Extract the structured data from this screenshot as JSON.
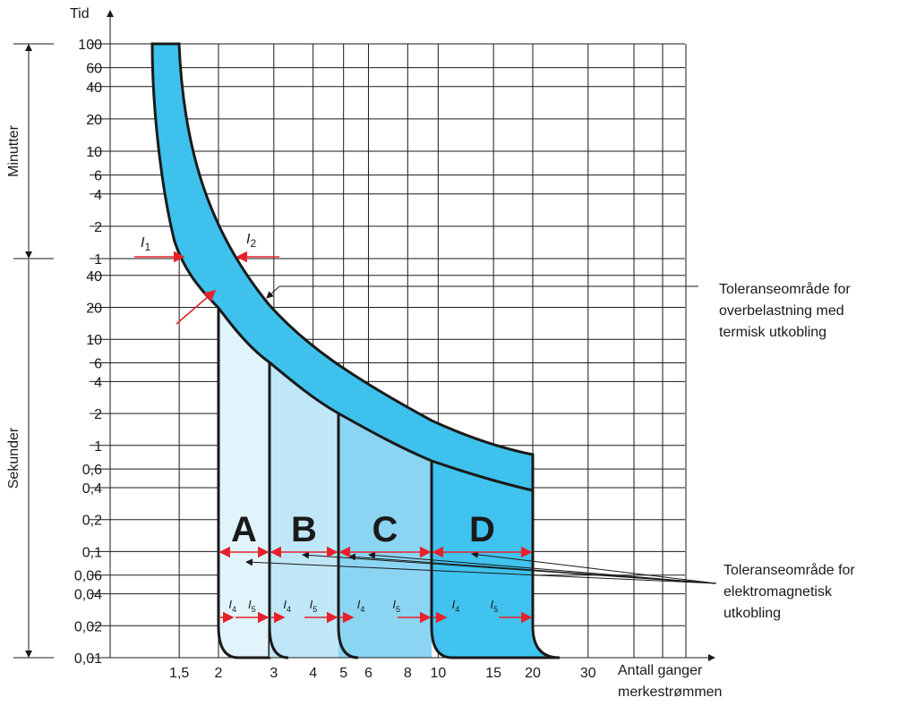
{
  "y_axis": {
    "label": "Tid",
    "minutes_label": "Minutter",
    "seconds_label": "Sekunder",
    "minutes_ticks": [
      100,
      60,
      40,
      20,
      10,
      6,
      4,
      2,
      1
    ],
    "seconds_ticks": [
      40,
      20,
      10,
      6,
      4,
      2,
      1,
      {
        "value": 0.6,
        "label": "0,6"
      },
      {
        "value": 0.4,
        "label": "0,4"
      },
      {
        "value": 0.2,
        "label": "0,2"
      },
      {
        "value": 0.1,
        "label": "0,1"
      },
      {
        "value": 0.06,
        "label": "0,06"
      },
      {
        "value": 0.04,
        "label": "0,04"
      },
      {
        "value": 0.02,
        "label": "0,02"
      },
      {
        "value": 0.01,
        "label": "0,01"
      }
    ]
  },
  "x_axis": {
    "label_line1": "Antall ganger",
    "label_line2": "merkestrømmen",
    "ticks": [
      {
        "value": 1.5,
        "label": "1,5"
      },
      2,
      3,
      4,
      5,
      6,
      8,
      10,
      15,
      20,
      30
    ]
  },
  "zones": [
    "A",
    "B",
    "C",
    "D"
  ],
  "current_symbol": "I",
  "current_subs": [
    "1",
    "2",
    "4",
    "5"
  ],
  "annotations": {
    "thermal": [
      "Toleranseområde for",
      "overbelastning med",
      "termisk utkobling"
    ],
    "magnetic": [
      "Toleranseområde for",
      "elektromagnetisk",
      "utkobling"
    ]
  }
}
